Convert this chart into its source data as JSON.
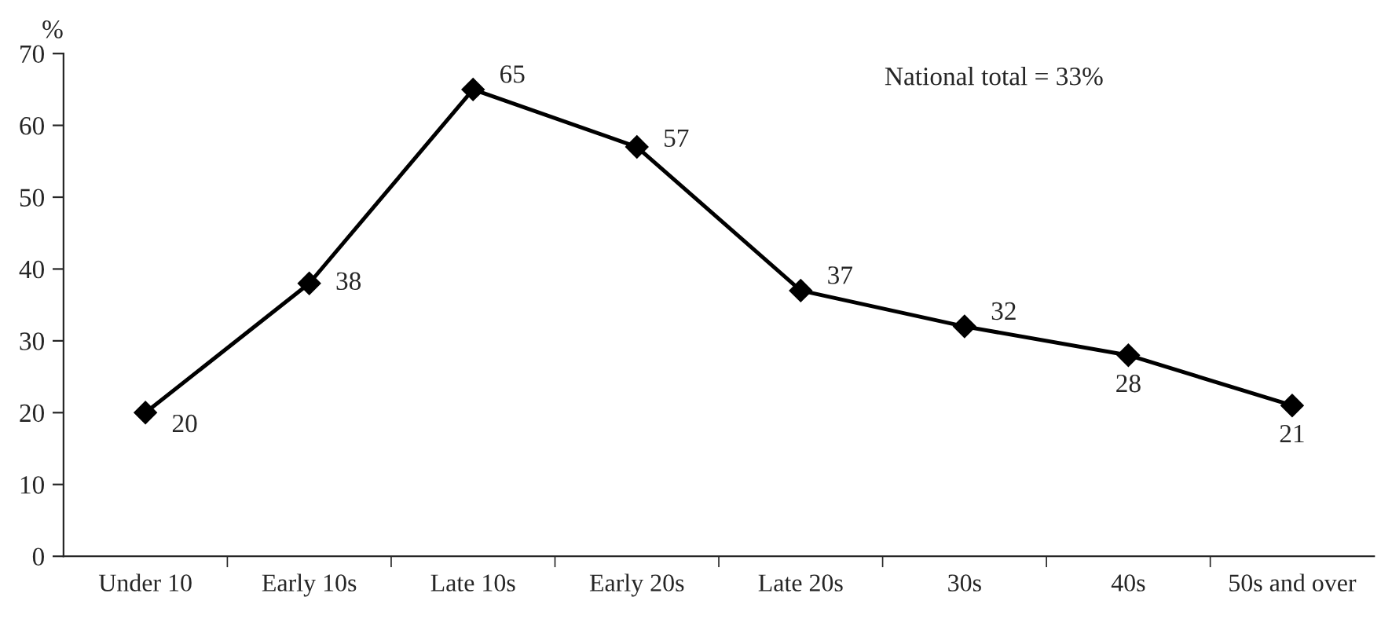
{
  "chart_data": {
    "type": "line",
    "categories": [
      "Under 10",
      "Early 10s",
      "Late 10s",
      "Early 20s",
      "Late 20s",
      "30s",
      "40s",
      "50s and over"
    ],
    "series": [
      {
        "color": "#000000",
        "values": [
          20,
          38,
          65,
          57,
          37,
          32,
          28,
          21
        ]
      }
    ],
    "ylabel": "%",
    "ylim": [
      0,
      70
    ],
    "yticks": [
      0,
      10,
      20,
      30,
      40,
      50,
      60,
      70
    ],
    "annotations": [
      "National total = 33%"
    ],
    "data_labels": true,
    "marker": "diamond",
    "line_style": "solid",
    "grid": false,
    "legend": false
  }
}
